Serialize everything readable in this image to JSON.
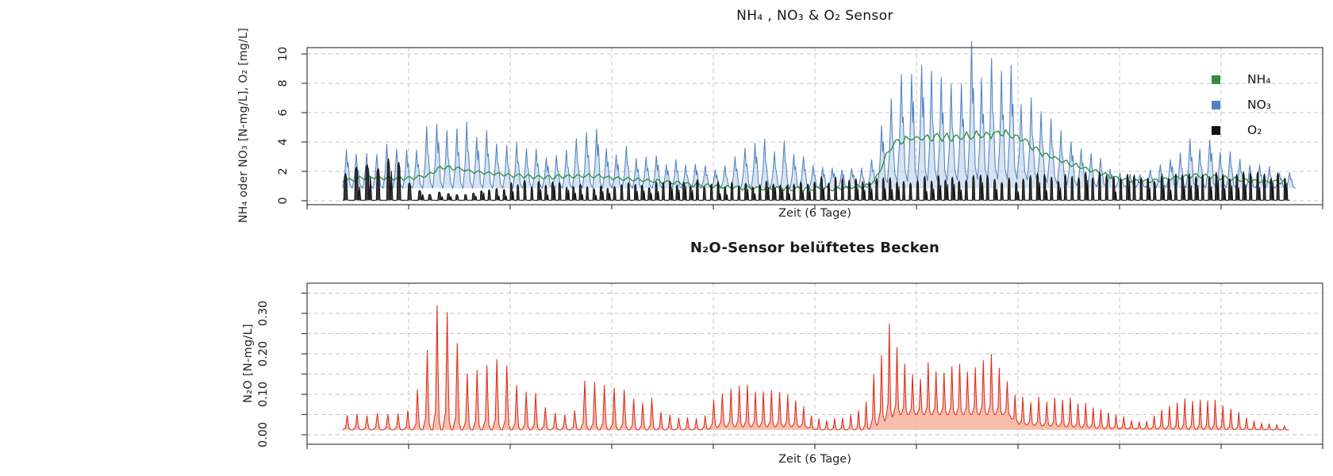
{
  "page": {
    "background": "#ffffff"
  },
  "colors": {
    "axis": "#3d3d3d",
    "grid": "#c6c6c6",
    "text": "#1e1e1e",
    "nh4_green": "#2F8F41",
    "no3_blue": "#4F83C2",
    "no3_fill": "#BCD0E8",
    "o2_black": "#111111",
    "n2o_red": "#DE2A18",
    "n2o_fill": "#F5AD99"
  },
  "chart_data": [
    {
      "type": "line",
      "title": "NH₄ , NO₃  &  O₂  Sensor",
      "xlabel": "Zeit (6 Tage)",
      "ylabel": "NH₄ oder NO₃  [N-mg/L], O₂ [mg/L]",
      "ylim": [
        0,
        10
      ],
      "yticks": [
        0,
        2,
        4,
        6,
        8,
        10
      ],
      "ytick_labels": [
        "0",
        "2",
        "4",
        "6",
        "8",
        "10"
      ],
      "x_divisions": 10,
      "x_tick_labels": [],
      "grid": "dashed",
      "legend_position": "top-right",
      "legend": [
        {
          "label": "NH₄",
          "color": "#2F8F41"
        },
        {
          "label": "NO₃",
          "color": "#4F83C2"
        },
        {
          "label": "O₂",
          "color": "#111111"
        }
      ],
      "t_range": [
        0.035,
        0.965
      ],
      "series": [
        {
          "name": "NO₃",
          "kind": "spikes",
          "shape": "ragged",
          "color": "#4F83C2",
          "fill": "#BCD0E8",
          "fill_opacity": 0.6,
          "period": 0.0098,
          "jitter": [
            0.8,
            1.18
          ],
          "lo": [
            [
              0.035,
              0.85
            ],
            [
              0.55,
              0.85
            ],
            [
              0.575,
              1.3
            ],
            [
              0.7,
              1.5
            ],
            [
              0.73,
              1.2
            ],
            [
              0.77,
              0.95
            ],
            [
              0.965,
              0.85
            ]
          ],
          "hi": [
            [
              0.0352,
              3.4
            ],
            [
              0.057,
              3.3
            ],
            [
              0.0805,
              3.4
            ],
            [
              0.1,
              3.6
            ],
            [
              0.1117,
              4.2
            ],
            [
              0.1234,
              5.0
            ],
            [
              0.1352,
              5.2
            ],
            [
              0.1508,
              5.3
            ],
            [
              0.1664,
              4.9
            ],
            [
              0.1859,
              4.5
            ],
            [
              0.2055,
              4.3
            ],
            [
              0.225,
              3.6
            ],
            [
              0.2445,
              2.9
            ],
            [
              0.2602,
              3.4
            ],
            [
              0.2719,
              4.5
            ],
            [
              0.2875,
              4.3
            ],
            [
              0.3031,
              3.6
            ],
            [
              0.3227,
              3.1
            ],
            [
              0.3461,
              2.8
            ],
            [
              0.3695,
              2.6
            ],
            [
              0.393,
              2.4
            ],
            [
              0.4086,
              2.3
            ],
            [
              0.4227,
              3.3
            ],
            [
              0.4336,
              3.9
            ],
            [
              0.4477,
              3.7
            ],
            [
              0.4711,
              3.7
            ],
            [
              0.4883,
              3.2
            ],
            [
              0.5063,
              2.5
            ],
            [
              0.5258,
              2.0
            ],
            [
              0.5453,
              2.2
            ],
            [
              0.557,
              3.2
            ],
            [
              0.5664,
              5.5
            ],
            [
              0.5789,
              7.3
            ],
            [
              0.5961,
              8.1
            ],
            [
              0.6156,
              8.6
            ],
            [
              0.6352,
              8.9
            ],
            [
              0.6508,
              9.2
            ],
            [
              0.6625,
              10.3
            ],
            [
              0.6742,
              9.0
            ],
            [
              0.6883,
              8.9
            ],
            [
              0.7016,
              7.8
            ],
            [
              0.7172,
              6.8
            ],
            [
              0.7328,
              5.8
            ],
            [
              0.7484,
              4.8
            ],
            [
              0.7641,
              3.8
            ],
            [
              0.7836,
              2.6
            ],
            [
              0.8031,
              2.0
            ],
            [
              0.8227,
              1.9
            ],
            [
              0.8422,
              2.4
            ],
            [
              0.8617,
              3.6
            ],
            [
              0.8773,
              4.0
            ],
            [
              0.893,
              3.9
            ],
            [
              0.9086,
              3.3
            ],
            [
              0.9281,
              2.6
            ],
            [
              0.9477,
              2.2
            ],
            [
              0.9648,
              2.0
            ]
          ]
        },
        {
          "name": "NH₄",
          "kind": "smooth",
          "color": "#2F8F41",
          "period": 0.0098,
          "wiggle": 0.13,
          "center": [
            [
              0.0352,
              1.35
            ],
            [
              0.0648,
              1.6
            ],
            [
              0.0961,
              1.5
            ],
            [
              0.1195,
              1.7
            ],
            [
              0.1313,
              2.3
            ],
            [
              0.1469,
              2.2
            ],
            [
              0.1664,
              1.95
            ],
            [
              0.1977,
              1.75
            ],
            [
              0.2367,
              1.6
            ],
            [
              0.2758,
              1.7
            ],
            [
              0.3148,
              1.5
            ],
            [
              0.3461,
              1.3
            ],
            [
              0.3773,
              1.1
            ],
            [
              0.4086,
              0.95
            ],
            [
              0.4477,
              0.85
            ],
            [
              0.4867,
              0.8
            ],
            [
              0.5258,
              0.85
            ],
            [
              0.5531,
              1.0
            ],
            [
              0.5625,
              1.8
            ],
            [
              0.5711,
              3.2
            ],
            [
              0.5805,
              4.1
            ],
            [
              0.6039,
              4.3
            ],
            [
              0.6352,
              4.3
            ],
            [
              0.6664,
              4.5
            ],
            [
              0.6836,
              4.6
            ],
            [
              0.7016,
              4.3
            ],
            [
              0.7133,
              3.7
            ],
            [
              0.7289,
              3.1
            ],
            [
              0.7523,
              2.5
            ],
            [
              0.7758,
              2.0
            ],
            [
              0.7992,
              1.5
            ],
            [
              0.8227,
              1.3
            ],
            [
              0.85,
              1.5
            ],
            [
              0.8734,
              1.7
            ],
            [
              0.8969,
              1.6
            ],
            [
              0.9203,
              1.4
            ],
            [
              0.9438,
              1.3
            ],
            [
              0.9648,
              1.3
            ]
          ]
        },
        {
          "name": "O₂",
          "kind": "spikes",
          "shape": "burst",
          "color": "#111111",
          "fill": "#222222",
          "fill_opacity": 0.9,
          "period_kf": [
            [
              0.035,
              0.0105
            ],
            [
              0.1,
              0.0105
            ],
            [
              0.13,
              0.009
            ],
            [
              0.2,
              0.0068
            ],
            [
              0.965,
              0.0068
            ]
          ],
          "jitter": [
            0.72,
            1.1
          ],
          "lo": [
            [
              0.035,
              0.03
            ],
            [
              0.965,
              0.03
            ]
          ],
          "hi": [
            [
              0.0352,
              1.8
            ],
            [
              0.0531,
              2.2
            ],
            [
              0.0688,
              2.7
            ],
            [
              0.0844,
              3.0
            ],
            [
              0.0977,
              2.5
            ],
            [
              0.1055,
              1.2
            ],
            [
              0.1156,
              0.6
            ],
            [
              0.143,
              0.55
            ],
            [
              0.1703,
              0.6
            ],
            [
              0.1898,
              0.9
            ],
            [
              0.2055,
              1.3
            ],
            [
              0.2445,
              1.2
            ],
            [
              0.2914,
              1.1
            ],
            [
              0.3383,
              1.2
            ],
            [
              0.3852,
              1.3
            ],
            [
              0.432,
              1.2
            ],
            [
              0.4789,
              1.3
            ],
            [
              0.518,
              1.6
            ],
            [
              0.5492,
              1.7
            ],
            [
              0.5805,
              1.5
            ],
            [
              0.6352,
              1.6
            ],
            [
              0.6977,
              1.7
            ],
            [
              0.7602,
              1.8
            ],
            [
              0.8227,
              1.8
            ],
            [
              0.8852,
              1.9
            ],
            [
              0.932,
              2.0
            ],
            [
              0.9648,
              2.1
            ]
          ]
        }
      ]
    },
    {
      "type": "line",
      "title": "N₂O-Sensor belüftetes Becken",
      "xlabel": "Zeit (6 Tage)",
      "ylabel": "N₂O  [N-mg/L]",
      "ylim": [
        0,
        0.35
      ],
      "yticks": [
        0,
        0.05,
        0.1,
        0.15,
        0.2,
        0.25,
        0.3,
        0.35
      ],
      "ytick_labels": [
        "0.00",
        "",
        "0.10",
        "",
        "0.20",
        "",
        "0.30",
        ""
      ],
      "x_divisions": 10,
      "x_tick_labels": [],
      "grid": "dashed",
      "legend": [],
      "t_range": [
        0.035,
        0.965
      ],
      "series": [
        {
          "name": "N₂O",
          "kind": "spikes",
          "shape": "sharp",
          "color": "#DE2A18",
          "fill": "#F5AD99",
          "fill_opacity": 0.8,
          "period_kf": [
            [
              0.035,
              0.01
            ],
            [
              0.3,
              0.0095
            ],
            [
              0.45,
              0.0078
            ],
            [
              0.965,
              0.0075
            ]
          ],
          "jitter": [
            0.9,
            1.08
          ],
          "lo": [
            [
              0.0352,
              0.012
            ],
            [
              0.39,
              0.012
            ],
            [
              0.405,
              0.02
            ],
            [
              0.487,
              0.02
            ],
            [
              0.5,
              0.012
            ],
            [
              0.55,
              0.012
            ],
            [
              0.578,
              0.05
            ],
            [
              0.688,
              0.05
            ],
            [
              0.7,
              0.025
            ],
            [
              0.79,
              0.015
            ],
            [
              0.9648,
              0.012
            ]
          ],
          "hi": [
            [
              0.0352,
              0.045
            ],
            [
              0.0609,
              0.05
            ],
            [
              0.0883,
              0.055
            ],
            [
              0.1023,
              0.065
            ],
            [
              0.1133,
              0.135
            ],
            [
              0.1219,
              0.24
            ],
            [
              0.1328,
              0.355
            ],
            [
              0.1422,
              0.28
            ],
            [
              0.1508,
              0.185
            ],
            [
              0.1602,
              0.15
            ],
            [
              0.1695,
              0.17
            ],
            [
              0.1773,
              0.16
            ],
            [
              0.1844,
              0.19
            ],
            [
              0.1922,
              0.17
            ],
            [
              0.2,
              0.16
            ],
            [
              0.2086,
              0.125
            ],
            [
              0.2164,
              0.11
            ],
            [
              0.2242,
              0.11
            ],
            [
              0.2305,
              0.08
            ],
            [
              0.2375,
              0.065
            ],
            [
              0.2453,
              0.055
            ],
            [
              0.2547,
              0.05
            ],
            [
              0.2648,
              0.06
            ],
            [
              0.2711,
              0.135
            ],
            [
              0.2805,
              0.125
            ],
            [
              0.2891,
              0.13
            ],
            [
              0.2969,
              0.11
            ],
            [
              0.3055,
              0.12
            ],
            [
              0.3164,
              0.1
            ],
            [
              0.3273,
              0.085
            ],
            [
              0.3398,
              0.085
            ],
            [
              0.3523,
              0.05
            ],
            [
              0.3656,
              0.045
            ],
            [
              0.3789,
              0.04
            ],
            [
              0.393,
              0.045
            ],
            [
              0.4047,
              0.1
            ],
            [
              0.418,
              0.11
            ],
            [
              0.432,
              0.12
            ],
            [
              0.4461,
              0.11
            ],
            [
              0.4602,
              0.12
            ],
            [
              0.4742,
              0.105
            ],
            [
              0.4852,
              0.08
            ],
            [
              0.4961,
              0.045
            ],
            [
              0.5102,
              0.035
            ],
            [
              0.5242,
              0.04
            ],
            [
              0.5375,
              0.05
            ],
            [
              0.5477,
              0.065
            ],
            [
              0.5555,
              0.12
            ],
            [
              0.5648,
              0.19
            ],
            [
              0.5742,
              0.28
            ],
            [
              0.582,
              0.22
            ],
            [
              0.5914,
              0.17
            ],
            [
              0.5992,
              0.13
            ],
            [
              0.607,
              0.155
            ],
            [
              0.6148,
              0.18
            ],
            [
              0.6227,
              0.14
            ],
            [
              0.6305,
              0.17
            ],
            [
              0.6383,
              0.16
            ],
            [
              0.6461,
              0.18
            ],
            [
              0.6539,
              0.145
            ],
            [
              0.6617,
              0.17
            ],
            [
              0.6695,
              0.19
            ],
            [
              0.6773,
              0.2
            ],
            [
              0.6844,
              0.15
            ],
            [
              0.6914,
              0.12
            ],
            [
              0.7,
              0.095
            ],
            [
              0.7109,
              0.085
            ],
            [
              0.7219,
              0.09
            ],
            [
              0.7328,
              0.085
            ],
            [
              0.7445,
              0.09
            ],
            [
              0.7563,
              0.085
            ],
            [
              0.768,
              0.075
            ],
            [
              0.7797,
              0.065
            ],
            [
              0.7914,
              0.055
            ],
            [
              0.8031,
              0.045
            ],
            [
              0.8148,
              0.03
            ],
            [
              0.8289,
              0.035
            ],
            [
              0.8398,
              0.055
            ],
            [
              0.85,
              0.075
            ],
            [
              0.8602,
              0.085
            ],
            [
              0.8695,
              0.09
            ],
            [
              0.8789,
              0.085
            ],
            [
              0.8883,
              0.09
            ],
            [
              0.8977,
              0.08
            ],
            [
              0.907,
              0.07
            ],
            [
              0.9164,
              0.055
            ],
            [
              0.9273,
              0.04
            ],
            [
              0.9398,
              0.03
            ],
            [
              0.9523,
              0.025
            ],
            [
              0.9648,
              0.022
            ]
          ]
        }
      ]
    }
  ]
}
